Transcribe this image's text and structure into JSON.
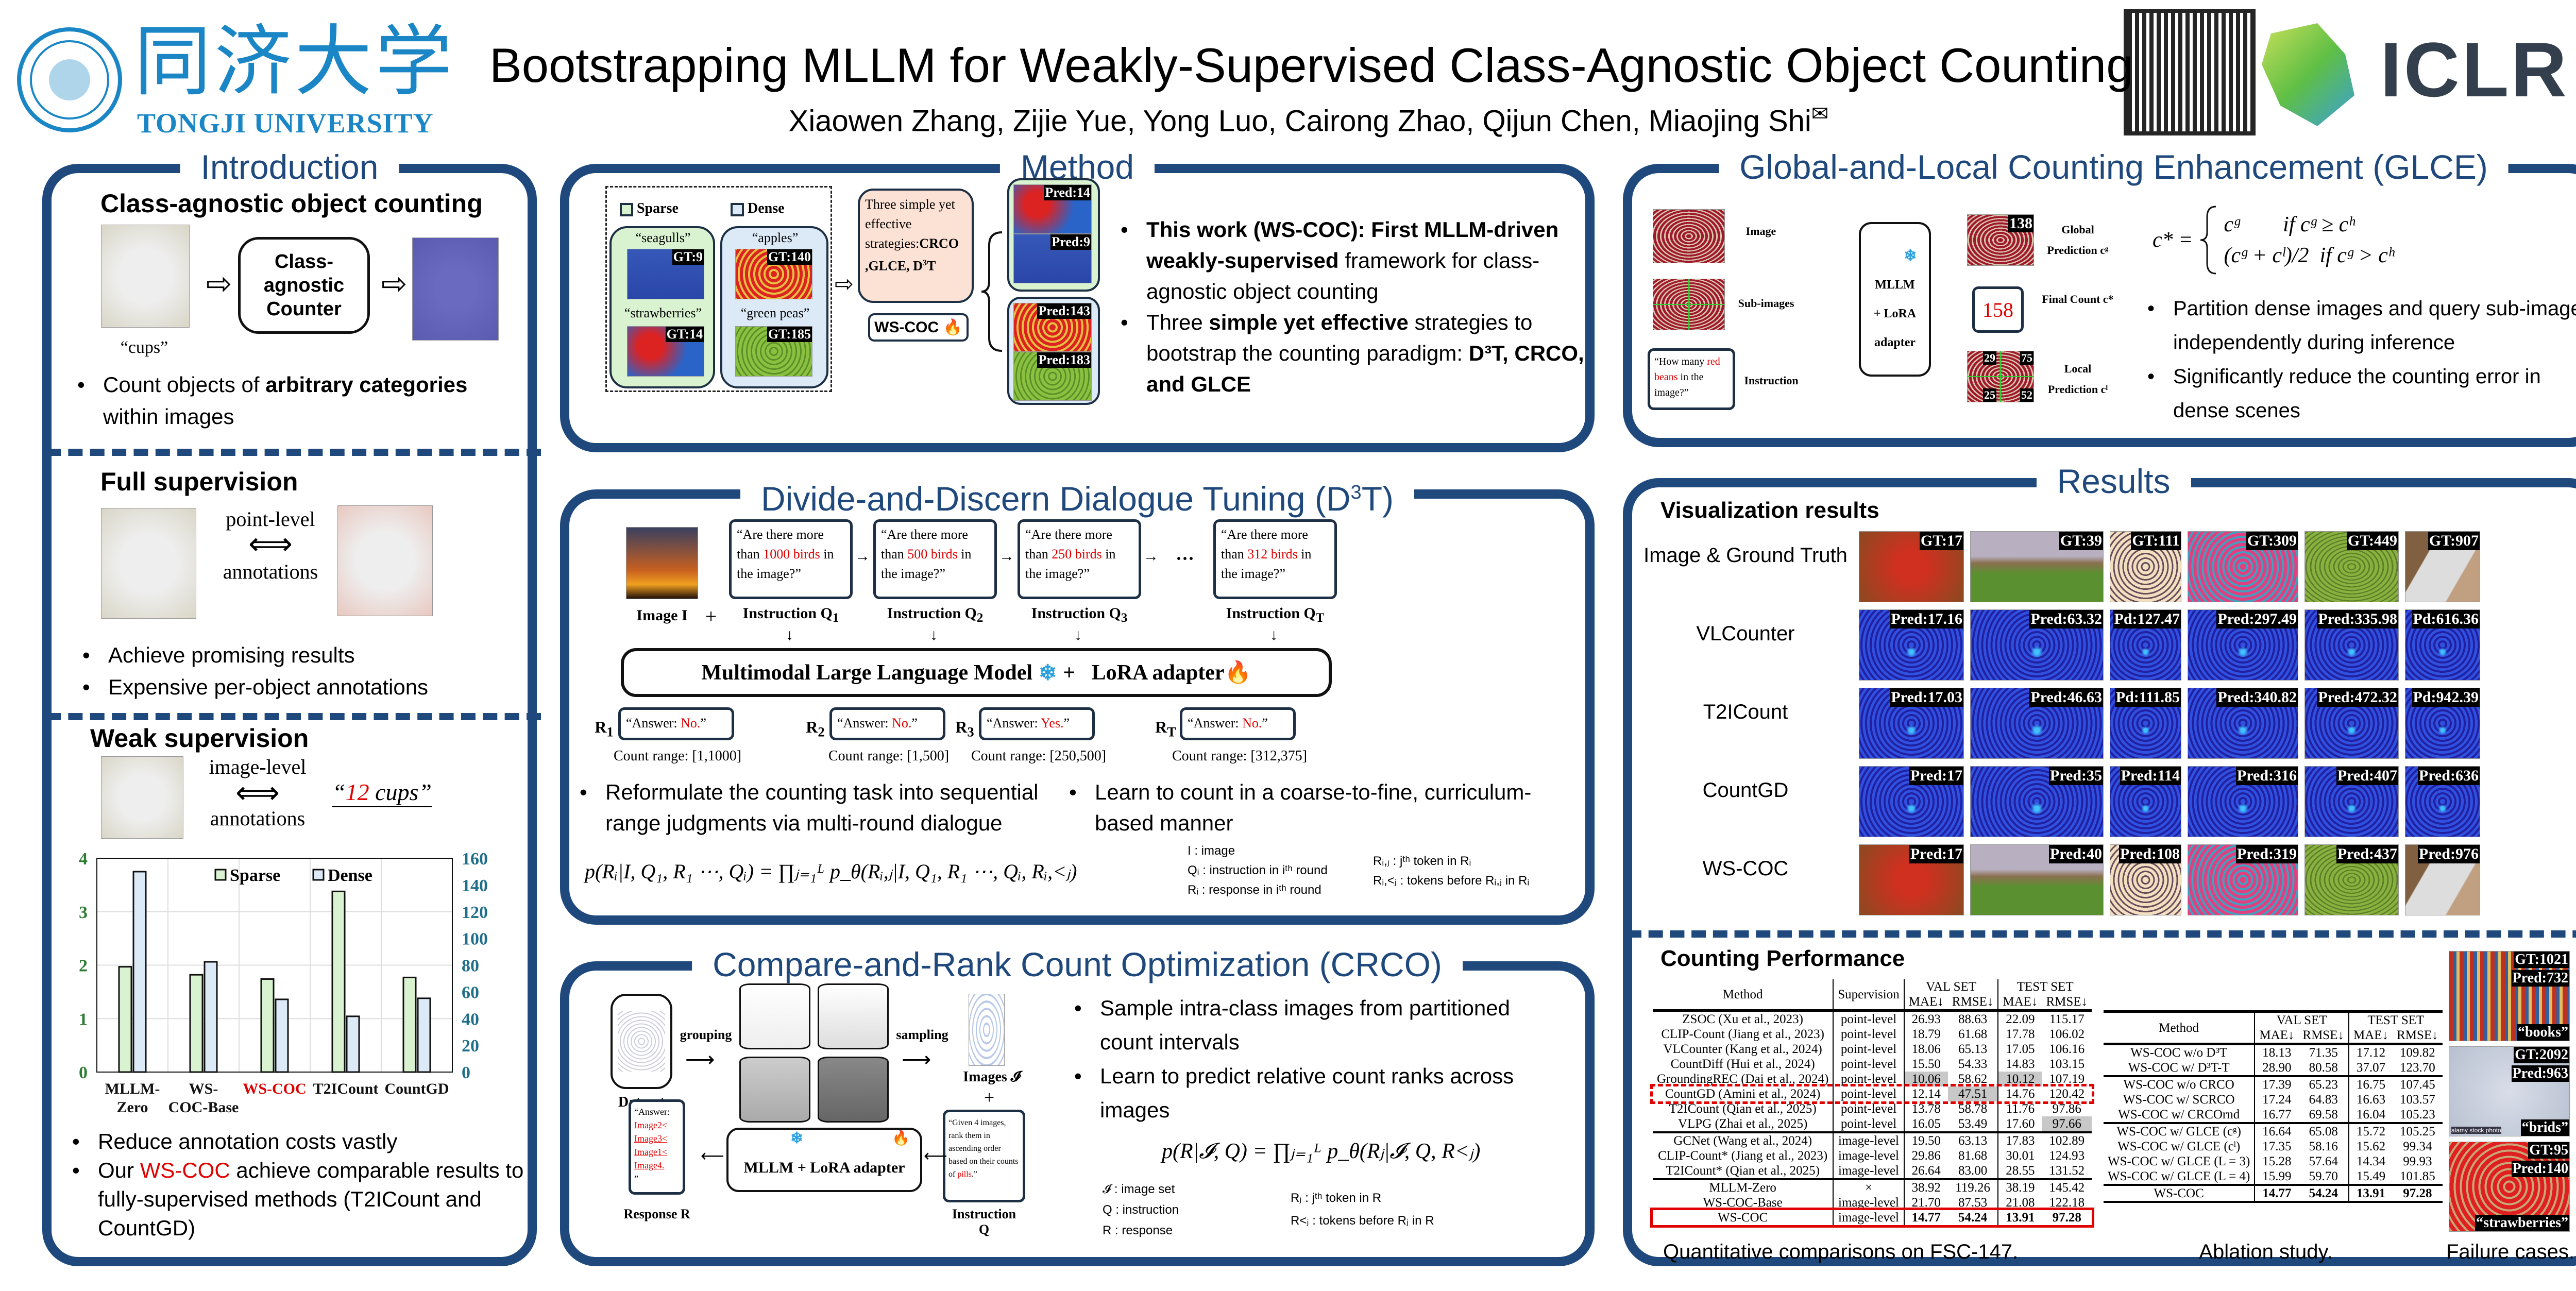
{
  "header": {
    "title": "Bootstrapping MLLM for Weakly-Supervised Class-Agnostic Object Counting",
    "authors": "Xiaowen Zhang, Zijie Yue, Yong Luo, Cairong Zhao, Qijun Chen, Miaojing Shi",
    "corresponding_mark": "✉",
    "university_cn": "同济大学",
    "university_en": "TONGJI UNIVERSITY",
    "conference": "ICLR",
    "colors": {
      "accent": "#1f497d",
      "tongji": "#1a86c6",
      "iclr": "#333f4d"
    }
  },
  "intro": {
    "title": "Introduction",
    "s1": {
      "heading": "Class-agnostic object counting",
      "query": "“cups”",
      "counter_label": "Class-agnostic Counter",
      "bullet_pre": "Count objects of ",
      "bullet_bold": "arbitrary categories",
      "bullet_post": " within images"
    },
    "s2": {
      "heading": "Full supervision",
      "arrow_top": "point-level",
      "arrow_bottom": "annotations",
      "bullets": [
        "Achieve promising results",
        "Expensive per-object annotations"
      ]
    },
    "s3": {
      "heading": "Weak supervision",
      "arrow_top": "image-level",
      "arrow_bottom": "annotations",
      "quote_open": "“",
      "count_num": "12",
      "count_obj": " cups",
      "quote_close": "”",
      "bullet1": "Reduce annotation costs vastly",
      "bullet2_pre": "Our ",
      "bullet2_hl": "WS-COC",
      "bullet2_post": " achieve comparable results to fully-supervised methods (T2ICount and CountGD)"
    }
  },
  "chart_data": {
    "type": "bar",
    "categories": [
      "MLLM-Zero",
      "WS-COC-Base",
      "WS-COC",
      "T2ICount",
      "CountGD"
    ],
    "highlight_category": "WS-COC",
    "series": [
      {
        "name": "Sparse",
        "axis": "left",
        "color": "#d9f2d0",
        "values": [
          1.97,
          1.82,
          1.74,
          3.38,
          1.77
        ]
      },
      {
        "name": "Dense",
        "axis": "right",
        "color": "#dce9f7",
        "values": [
          150,
          82.5,
          54.4,
          41.7,
          55.2
        ]
      }
    ],
    "y_left": {
      "range": [
        0,
        4
      ],
      "ticks": [
        0,
        1,
        2,
        3,
        4
      ],
      "color": "#2e7d32"
    },
    "y_right": {
      "range": [
        0,
        160
      ],
      "ticks": [
        0,
        20,
        40,
        60,
        80,
        100,
        120,
        140,
        160
      ],
      "color": "#1f6f8b"
    },
    "grid": true,
    "legend": "top"
  },
  "method": {
    "title": "Method",
    "legend": [
      "Sparse",
      "Dense"
    ],
    "sparse_examples": [
      {
        "label": "“seagulls”",
        "gt": "GT:9"
      },
      {
        "label": "“strawberries”",
        "gt": "GT:14"
      }
    ],
    "dense_examples": [
      {
        "label": "“apples”",
        "gt": "GT:140"
      },
      {
        "label": "“green peas”",
        "gt": "GT:185"
      }
    ],
    "bubble_pre": "Three simple yet effective strategies:",
    "bubble_bold": "CRCO ,GLCE, D",
    "bubble_sup": "3",
    "bubble_end": "T",
    "model": "WS-COC",
    "preds_sparse": [
      "Pred:14",
      "Pred:9"
    ],
    "preds_dense": [
      "Pred:143",
      "Pred:183"
    ],
    "b1_bold": "This work (WS-COC): First MLLM-driven weakly-supervised",
    "b1_post": " framework for class-agnostic object counting",
    "b2_pre": "Three ",
    "b2_bold": "simple yet effective",
    "b2_post": " strategies to bootstrap the counting paradigm: ",
    "b2_end_bold": "D³T, CRCO, and GLCE"
  },
  "d3t": {
    "title_pre": "Divide-and-Discern Dialogue Tuning  (D",
    "title_sup": "3",
    "title_post": "T)",
    "image_label": "Image I",
    "plus": "+",
    "ellipsis": "···",
    "questions": [
      {
        "pre": "“Are there more than ",
        "num": "1000 birds",
        "post": " in the image?”",
        "label": "Instruction Q",
        "sub": "1"
      },
      {
        "pre": "“Are there more than ",
        "num": "500 birds",
        "post": " in the image?”",
        "label": "Instruction Q",
        "sub": "2"
      },
      {
        "pre": "“Are there more than ",
        "num": "250 birds",
        "post": " in the image?”",
        "label": "Instruction Q",
        "sub": "3"
      },
      {
        "pre": "“Are there more than ",
        "num": "312 birds",
        "post": " in the image?”",
        "label": "Instruction Q",
        "sub": "T"
      }
    ],
    "model": "Multimodal Large Language Model",
    "lora": "LoRA adapter",
    "answers": [
      {
        "r": "R",
        "sub": "1",
        "pre": "“Answer: ",
        "ans": "No.",
        "post": "”",
        "range": "Count range: [1,1000]"
      },
      {
        "r": "R",
        "sub": "2",
        "pre": "“Answer: ",
        "ans": "No.",
        "post": "”",
        "range": "Count range: [1,500]"
      },
      {
        "r": "R",
        "sub": "3",
        "pre": "“Answer: ",
        "ans": "Yes.",
        "post": "”",
        "range": "Count range: [250,500]"
      },
      {
        "r": "R",
        "sub": "T",
        "pre": "“Answer: ",
        "ans": "No.",
        "post": "”",
        "range": "Count range: [312,375]"
      }
    ],
    "bullet1": "Reformulate the counting task into sequential range judgments via multi-round dialogue",
    "bullet2": "Learn to count in a coarse-to-fine, curriculum-based manner",
    "formula": "p(Rᵢ|I, Q₁, R₁ ⋯, Qᵢ) = ∏ⱼ₌₁ᴸ p_θ(Rᵢ,ⱼ|I, Q₁, R₁ ⋯, Qᵢ, Rᵢ,<ⱼ)",
    "legend_left": [
      "I : image",
      "Qᵢ : instruction in iᵗʰ round",
      "Rᵢ : response in iᵗʰ round"
    ],
    "legend_right": [
      "Rᵢ,ⱼ : jᵗʰ token in Rᵢ",
      "Rᵢ,<ⱼ : tokens before Rᵢ,ⱼ in Rᵢ"
    ]
  },
  "crco": {
    "title": "Compare-and-Rank Count Optimization (CRCO)",
    "dataset": "Dataset",
    "grouping": "grouping",
    "sampling": "sampling",
    "images_label": "Images 𝓘",
    "plus": "+",
    "instruction_pre": "“Given 4 images, rank them in ascending order based on their counts of ",
    "instruction_hl": "pills",
    "instruction_post": ".”",
    "instruction_label": "Instruction Q",
    "response_head": "“Answer:",
    "response_items": [
      "Image2<",
      "Image3<",
      "Image1<",
      "Image4."
    ],
    "response_close": "”",
    "response_label": "Response R",
    "model_pre": "MLLM",
    "model_post": "+ LoRA adapter",
    "bullets": [
      "Sample intra-class images from partitioned count intervals",
      "Learn to predict relative count ranks across images"
    ],
    "formula": "p(R|𝓘, Q) = ∏ⱼ₌₁ᴸ p_θ(Rⱼ|𝓘, Q, R<ⱼ)",
    "legend_left": [
      "𝓘 : image set",
      "Q : instruction",
      "R : response"
    ],
    "legend_right": [
      "Rⱼ :  jᵗʰ token in R",
      "R<ⱼ : tokens before Rⱼ in R"
    ]
  },
  "glce": {
    "title": "Global-and-Local Counting Enhancement (GLCE)",
    "image": "Image",
    "sub_images": "Sub-images",
    "instruction": "Instruction",
    "instruction_pre": "“How many ",
    "instruction_hl": "red beans",
    "instruction_post": " in the image?”",
    "model_lines": [
      "MLLM",
      "+ LoRA",
      "adapter"
    ],
    "global_label": "Global Prediction cᵍ",
    "global_value": "138",
    "final_label": "Final Count c*",
    "final_value": "158",
    "local_label": "Local Prediction cˡ",
    "local_values": [
      "29",
      "75",
      "25",
      "52"
    ],
    "formula_lhs": "c* =",
    "formula_case1": "cᵍ        if cᵍ ≥ cʰ",
    "formula_case2": "(cᵍ + cˡ)/2  if cᵍ > cʰ",
    "bullets": [
      "Partition dense images and query sub-images independently during inference",
      "Significantly reduce the counting error in dense scenes"
    ]
  },
  "results": {
    "title": "Results",
    "vis_heading": "Visualization results",
    "row_labels": [
      "Image & Ground Truth",
      "VLCounter",
      "T2ICount",
      "CountGD",
      "WS-COC"
    ],
    "grid": [
      [
        "GT:17",
        "GT:39",
        "GT:111",
        "GT:309",
        "GT:449",
        "GT:907"
      ],
      [
        "Pred:17.16",
        "Pred:63.32",
        "Pd:127.47",
        "Pred:297.49",
        "Pred:335.98",
        "Pd:616.36"
      ],
      [
        "Pred:17.03",
        "Pred:46.63",
        "Pd:111.85",
        "Pred:340.82",
        "Pred:472.32",
        "Pd:942.39"
      ],
      [
        "Pred:17",
        "Pred:35",
        "Pred:114",
        "Pred:316",
        "Pred:407",
        "Pred:636"
      ],
      [
        "Pred:17",
        "Pred:40",
        "Pred:108",
        "Pred:319",
        "Pred:437",
        "Pred:976"
      ]
    ],
    "counting_heading": "Counting Performance",
    "table1": {
      "headers": [
        "Method",
        "Supervision",
        "VAL SET",
        "TEST SET"
      ],
      "subheaders": [
        "MAE↓",
        "RMSE↓",
        "MAE↓",
        "RMSE↓"
      ],
      "groups": [
        [
          [
            "ZSOC (Xu et al., 2023)",
            "point-level",
            "26.93",
            "88.63",
            "22.09",
            "115.17"
          ],
          [
            "CLIP-Count (Jiang et al., 2023)",
            "point-level",
            "18.79",
            "61.68",
            "17.78",
            "106.02"
          ],
          [
            "VLCounter (Kang et al., 2024)",
            "point-level",
            "18.06",
            "65.13",
            "17.05",
            "106.16"
          ],
          [
            "CountDiff (Hui et al., 2024)",
            "point-level",
            "15.50",
            "54.33",
            "14.83",
            "103.15"
          ],
          [
            "GroundingREC (Dai et al., 2024)",
            "point-level",
            "10.06",
            "58.62",
            "10.12",
            "107.19"
          ],
          [
            "CountGD (Amini et al., 2024)",
            "point-level",
            "12.14",
            "47.51",
            "14.76",
            "120.42"
          ],
          [
            "T2ICount (Qian et al., 2025)",
            "point-level",
            "13.78",
            "58.78",
            "11.76",
            "97.86"
          ],
          [
            "VLPG (Zhai et al., 2025)",
            "point-level",
            "16.05",
            "53.49",
            "17.60",
            "97.66"
          ]
        ],
        [
          [
            "GCNet (Wang et al., 2024)",
            "image-level",
            "19.50",
            "63.13",
            "17.83",
            "102.89"
          ],
          [
            "CLIP-Count* (Jiang et al., 2023)",
            "image-level",
            "29.86",
            "81.68",
            "30.01",
            "124.93"
          ],
          [
            "T2ICount* (Qian et al., 2025)",
            "image-level",
            "26.64",
            "83.00",
            "28.55",
            "131.52"
          ]
        ],
        [
          [
            "MLLM-Zero",
            "×",
            "38.92",
            "119.26",
            "38.19",
            "145.42"
          ],
          [
            "WS-COC-Base",
            "image-level",
            "21.70",
            "87.53",
            "21.08",
            "122.18"
          ],
          [
            "WS-COC",
            "image-level",
            "14.77",
            "54.24",
            "13.91",
            "97.28"
          ]
        ]
      ],
      "best_cells": [
        [
          0,
          4,
          2
        ],
        [
          0,
          4,
          4
        ],
        [
          0,
          5,
          3
        ],
        [
          0,
          7,
          5
        ]
      ],
      "dashed_row": [
        0,
        5
      ],
      "boxed_row": [
        2,
        2
      ],
      "caption": "Quantitative comparisons on FSC-147."
    },
    "table2": {
      "headers": [
        "Method",
        "VAL SET",
        "TEST SET"
      ],
      "subheaders": [
        "MAE↓",
        "RMSE↓",
        "MAE↓",
        "RMSE↓"
      ],
      "groups": [
        [
          [
            "WS-COC w/o D³T",
            "18.13",
            "71.35",
            "17.12",
            "109.82"
          ],
          [
            "WS-COC w/ D³T-T",
            "28.90",
            "80.58",
            "37.07",
            "123.70"
          ]
        ],
        [
          [
            "WS-COC w/o CRCO",
            "17.39",
            "65.23",
            "16.75",
            "107.45"
          ],
          [
            "WS-COC w/ SCRCO",
            "17.24",
            "64.83",
            "16.63",
            "103.57"
          ],
          [
            "WS-COC w/ CRCOrnd",
            "16.77",
            "69.58",
            "16.04",
            "105.23"
          ]
        ],
        [
          [
            "WS-COC w/ GLCE (cᵍ)",
            "16.64",
            "65.08",
            "15.72",
            "105.25"
          ],
          [
            "WS-COC w/ GLCE (cˡ)",
            "17.35",
            "58.16",
            "15.62",
            "99.34"
          ],
          [
            "WS-COC w/ GLCE (L = 3)",
            "15.28",
            "57.64",
            "14.34",
            "99.93"
          ],
          [
            "WS-COC w/ GLCE (L = 4)",
            "15.99",
            "59.70",
            "15.49",
            "101.85"
          ]
        ],
        [
          [
            "WS-COC",
            "14.77",
            "54.24",
            "13.91",
            "97.28"
          ]
        ]
      ],
      "caption": "Ablation study."
    },
    "failures": [
      {
        "gt": "GT:1021",
        "pred": "Pred:732",
        "cls": "“books”"
      },
      {
        "gt": "GT:2092",
        "pred": "Pred:963",
        "cls": "“brids”",
        "watermark": "alamy stock photo"
      },
      {
        "gt": "GT:95",
        "pred": "Pred:140",
        "cls": "“strawberries”"
      }
    ],
    "failures_caption": "Failure cases."
  }
}
